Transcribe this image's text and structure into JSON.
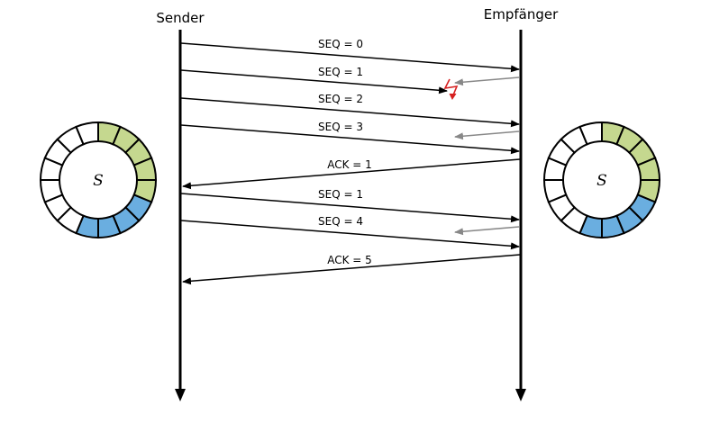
{
  "participants": {
    "sender": "Sender",
    "receiver": "Empfänger"
  },
  "messages": [
    {
      "label": "SEQ = 0",
      "direction": "sender-to-receiver",
      "lost": false
    },
    {
      "label": "SEQ = 1",
      "direction": "sender-to-receiver",
      "lost": true
    },
    {
      "label": "SEQ = 2",
      "direction": "sender-to-receiver",
      "lost": false
    },
    {
      "label": "SEQ = 3",
      "direction": "sender-to-receiver",
      "lost": false
    },
    {
      "label": "ACK = 1",
      "direction": "receiver-to-sender",
      "lost": false
    },
    {
      "label": "SEQ = 1",
      "direction": "sender-to-receiver",
      "lost": false
    },
    {
      "label": "SEQ = 4",
      "direction": "sender-to-receiver",
      "lost": false
    },
    {
      "label": "ACK = 5",
      "direction": "receiver-to-sender",
      "lost": false
    }
  ],
  "buffers": {
    "sender": {
      "label": "S",
      "segments": 16,
      "green_segments": [
        0,
        1,
        2,
        3,
        4
      ],
      "blue_segments": [
        5,
        6,
        7,
        8
      ]
    },
    "receiver": {
      "label": "S",
      "segments": 16,
      "green_segments": [
        0,
        1,
        2,
        3,
        4
      ],
      "blue_segments": [
        5,
        6,
        7,
        8
      ]
    }
  },
  "colors": {
    "line": "#000000",
    "feedback_arrow": "#888888",
    "loss_marker": "#d62020",
    "buffer_green": "#c5d88f",
    "buffer_blue": "#6aaee0",
    "buffer_empty": "#ffffff"
  }
}
